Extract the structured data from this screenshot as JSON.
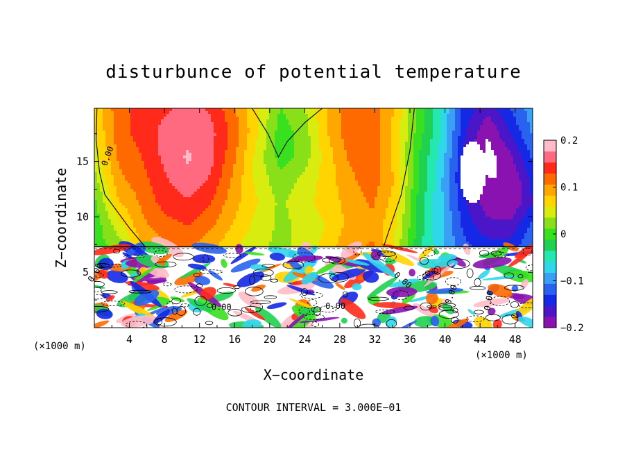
{
  "chart_data": {
    "type": "heatmap",
    "title": "disturbunce of potential temperature",
    "xlabel": "X−coordinate",
    "ylabel": "Z−coordinate",
    "x_unit_left": "(×1000 m)",
    "x_unit_right": "(×1000 m)",
    "footer": "CONTOUR INTERVAL = 3.000E−01",
    "xlim": [
      0,
      50
    ],
    "ylim": [
      0,
      19.8
    ],
    "x_ticks": [
      "4",
      "8",
      "12",
      "16",
      "20",
      "24",
      "28",
      "32",
      "36",
      "40",
      "44",
      "48"
    ],
    "y_ticks": [
      "5",
      "10",
      "15"
    ],
    "colorbar_range": [
      -0.2,
      0.2
    ],
    "colorbar_ticks": [
      "0.2",
      "0.1",
      "0",
      "−0.1",
      "−0.2"
    ],
    "contour_labels": [
      "0.00",
      "0.00",
      "0.00",
      "0.00",
      "0.00",
      "0.00",
      "0.00"
    ],
    "colorscale": [
      "#8a12b0",
      "#4b16c8",
      "#1428e6",
      "#2a62f0",
      "#3aa0f6",
      "#30d6ea",
      "#24e8b0",
      "#20d050",
      "#38e020",
      "#8ae018",
      "#d8ec10",
      "#ffd400",
      "#ffa600",
      "#ff6a00",
      "#ff2a1a",
      "#ff6a80",
      "#ffbcc8"
    ],
    "series": [
      {
        "values": [
          [
            0.07,
            0.12,
            0.14,
            0.15,
            0.16,
            0.15,
            0.11,
            0.06,
            0.01,
            0.03,
            0.08,
            0.12,
            0.12,
            0.08,
            0.0,
            -0.06,
            -0.14,
            -0.17,
            -0.13,
            -0.09
          ],
          [
            0.06,
            0.12,
            0.14,
            0.16,
            0.17,
            0.16,
            0.12,
            0.06,
            0.0,
            0.02,
            0.08,
            0.12,
            0.12,
            0.07,
            0.0,
            -0.06,
            -0.15,
            -0.2,
            -0.15,
            -0.1
          ],
          [
            0.05,
            0.11,
            0.13,
            0.16,
            0.18,
            0.16,
            0.11,
            0.05,
            0.0,
            0.02,
            0.07,
            0.11,
            0.12,
            0.07,
            -0.01,
            -0.07,
            -0.16,
            -0.21,
            -0.18,
            -0.12
          ],
          [
            0.03,
            0.1,
            0.12,
            0.15,
            0.17,
            0.15,
            0.1,
            0.05,
            0.02,
            0.04,
            0.07,
            0.1,
            0.12,
            0.08,
            -0.01,
            -0.08,
            -0.16,
            -0.2,
            -0.2,
            -0.14
          ],
          [
            0.01,
            0.08,
            0.11,
            0.14,
            0.15,
            0.13,
            0.09,
            0.06,
            0.03,
            0.05,
            0.07,
            0.09,
            0.11,
            0.07,
            -0.02,
            -0.08,
            -0.15,
            -0.19,
            -0.2,
            -0.15
          ],
          [
            0.0,
            0.05,
            0.1,
            0.12,
            0.13,
            0.11,
            0.08,
            0.05,
            0.03,
            0.04,
            0.06,
            0.09,
            0.1,
            0.06,
            -0.02,
            -0.08,
            -0.14,
            -0.17,
            -0.17,
            -0.12
          ],
          [
            0.0,
            0.02,
            0.08,
            0.1,
            0.11,
            0.09,
            0.06,
            0.04,
            0.03,
            0.04,
            0.07,
            0.1,
            0.11,
            0.05,
            -0.03,
            -0.08,
            -0.12,
            -0.14,
            -0.14,
            -0.1
          ]
        ]
      }
    ]
  }
}
